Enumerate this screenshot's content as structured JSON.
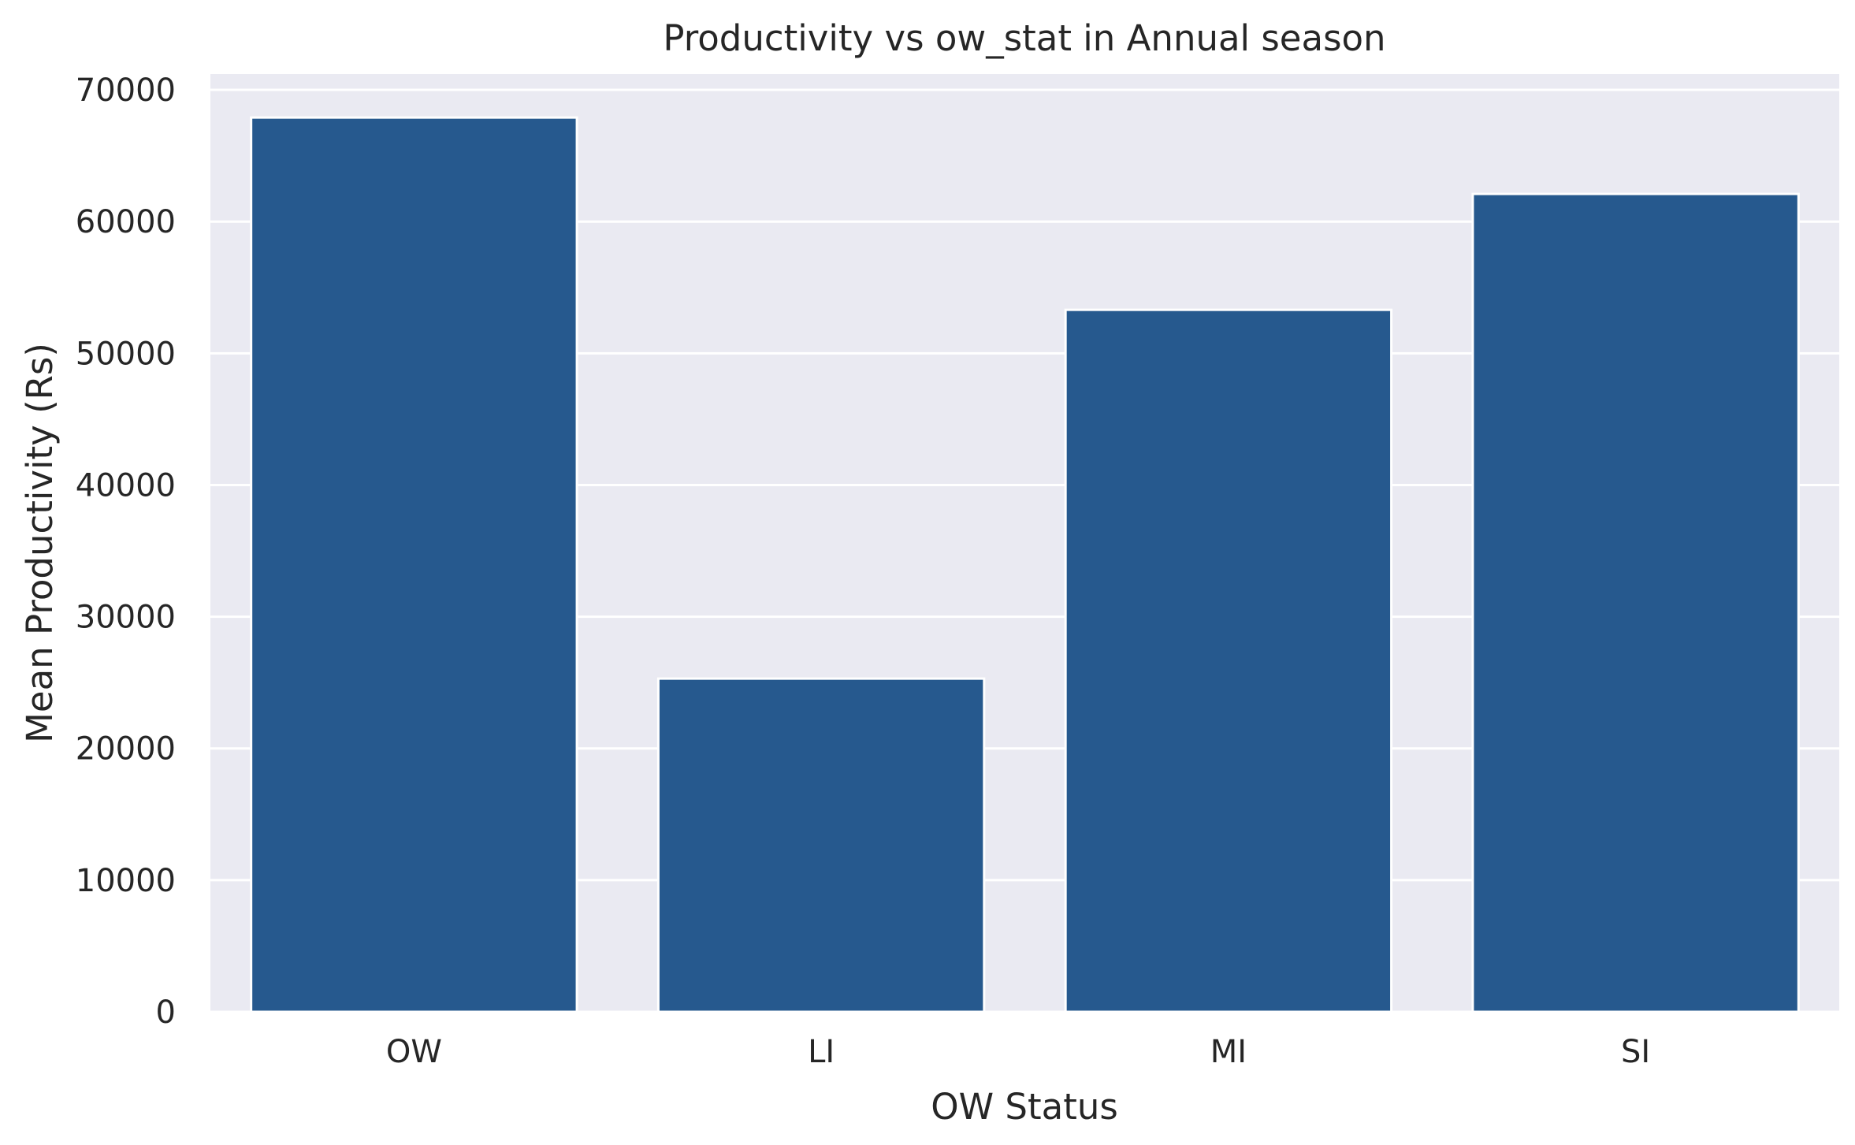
{
  "chart_data": {
    "type": "bar",
    "title": "Productivity vs ow_stat in Annual season",
    "xlabel": "OW Status",
    "ylabel": "Mean Productivity (Rs)",
    "categories": [
      "OW",
      "LI",
      "MI",
      "SI"
    ],
    "values": [
      67900,
      25300,
      53300,
      62100
    ],
    "ylim": [
      0,
      71200
    ],
    "yticks": [
      0,
      10000,
      20000,
      30000,
      40000,
      50000,
      60000,
      70000
    ],
    "grid": true,
    "legend": "none",
    "colors": {
      "bar": "#26598e",
      "plot_background": "#eaeaf2",
      "grid": "#ffffff"
    }
  }
}
